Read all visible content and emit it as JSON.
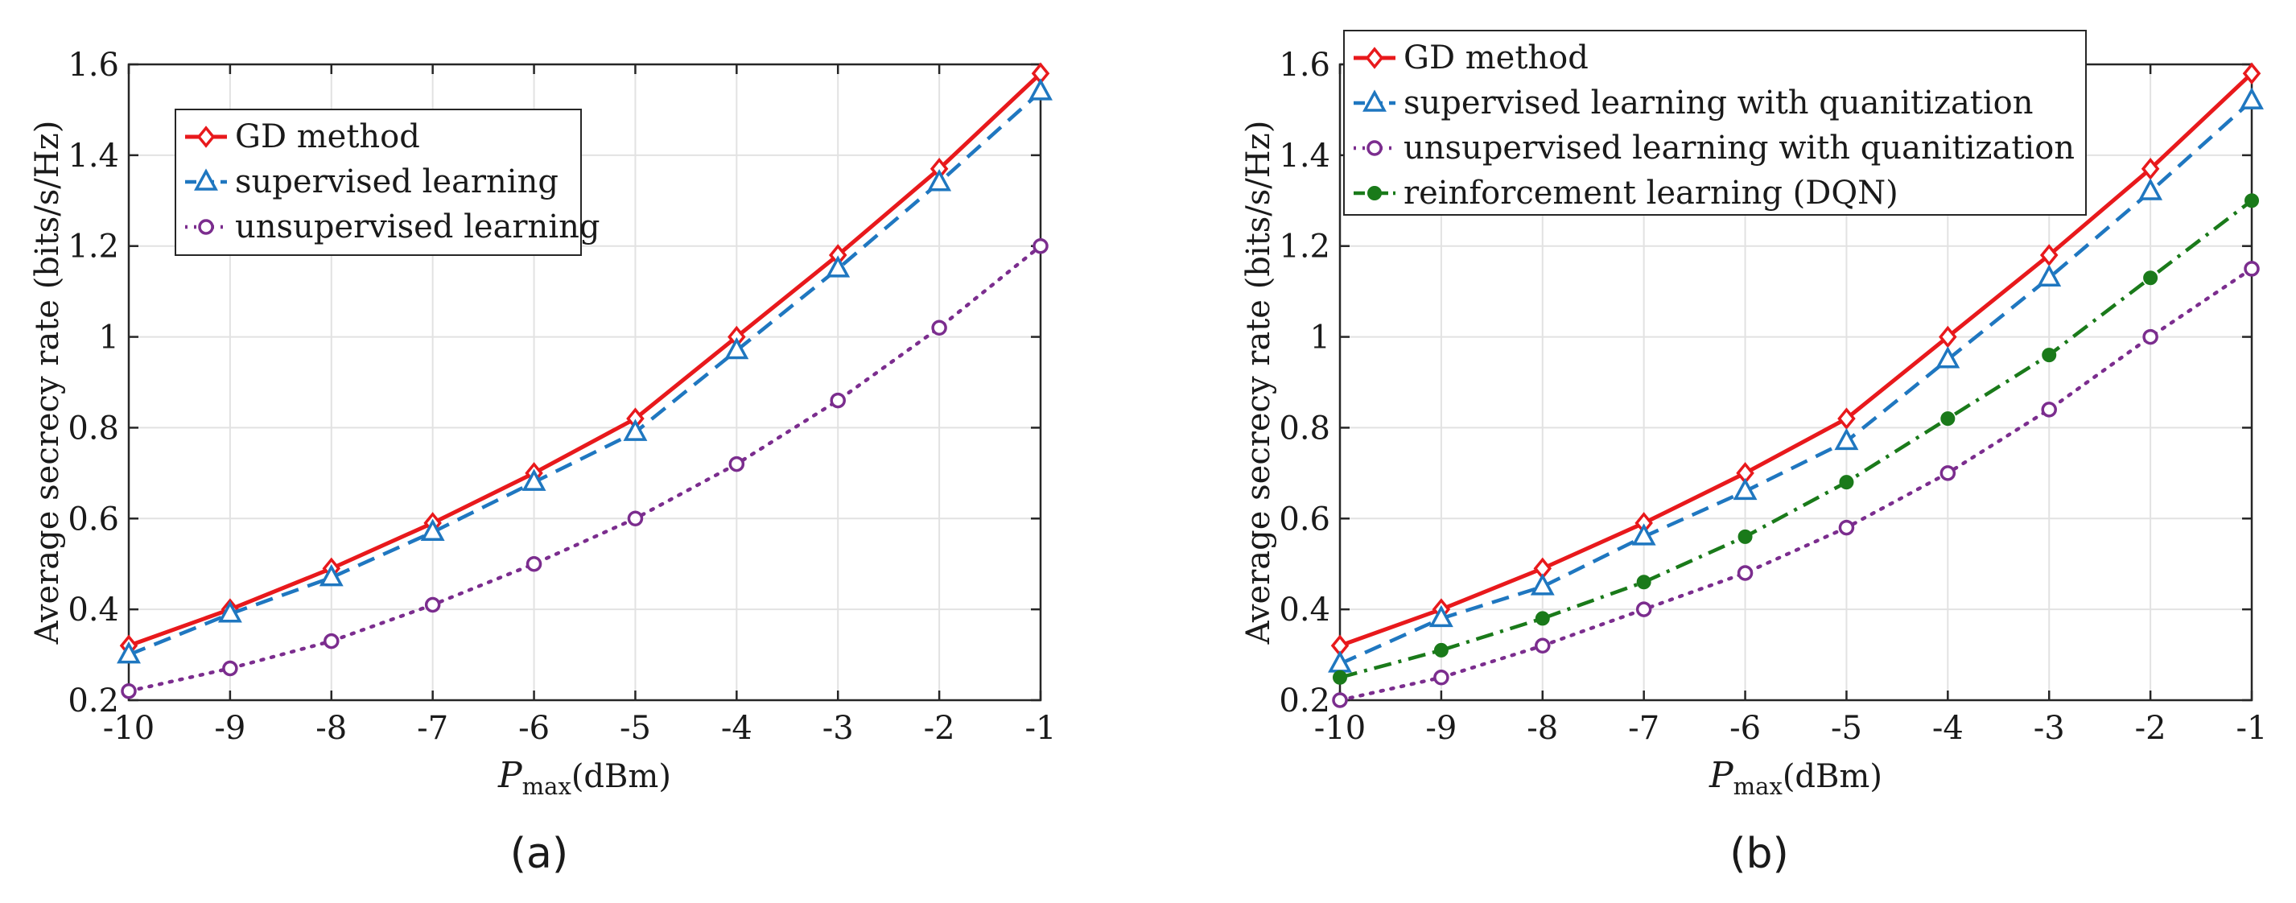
{
  "chart_data": [
    {
      "type": "line",
      "caption": "(a)",
      "xlabel_var": "P",
      "xlabel_sub": "max",
      "xlabel_unit": "(dBm)",
      "ylabel": "Average secrecy rate (bits/s/Hz)",
      "x": [
        -10,
        -9,
        -8,
        -7,
        -6,
        -5,
        -4,
        -3,
        -2,
        -1
      ],
      "xticks": [
        "-10",
        "-9",
        "-8",
        "-7",
        "-6",
        "-5",
        "-4",
        "-3",
        "-2",
        "-1"
      ],
      "ylim": [
        0.2,
        1.6
      ],
      "yticks": [
        0.2,
        0.4,
        0.6,
        0.8,
        1,
        1.2,
        1.4,
        1.6
      ],
      "ytick_labels": [
        "0.2",
        "0.4",
        "0.6",
        "0.8",
        "1",
        "1.2",
        "1.4",
        "1.6"
      ],
      "grid": true,
      "legend_position": "top-left",
      "series": [
        {
          "name": "GD method",
          "color": "#e8191c",
          "dash": "solid",
          "marker": "diamond",
          "values": [
            0.32,
            0.4,
            0.49,
            0.59,
            0.7,
            0.82,
            1.0,
            1.18,
            1.37,
            1.58
          ]
        },
        {
          "name": "supervised learning",
          "color": "#1f77c0",
          "dash": "dashed",
          "marker": "triangle",
          "values": [
            0.3,
            0.39,
            0.47,
            0.57,
            0.68,
            0.79,
            0.97,
            1.15,
            1.34,
            1.54
          ]
        },
        {
          "name": "unsupervised learning",
          "color": "#7b2d8e",
          "dash": "dotted",
          "marker": "circle",
          "values": [
            0.22,
            0.27,
            0.33,
            0.41,
            0.5,
            0.6,
            0.72,
            0.86,
            1.02,
            1.2
          ]
        }
      ]
    },
    {
      "type": "line",
      "caption": "(b)",
      "xlabel_var": "P",
      "xlabel_sub": "max",
      "xlabel_unit": "(dBm)",
      "ylabel": "Average secrecy rate (bits/s/Hz)",
      "x": [
        -10,
        -9,
        -8,
        -7,
        -6,
        -5,
        -4,
        -3,
        -2,
        -1
      ],
      "xticks": [
        "-10",
        "-9",
        "-8",
        "-7",
        "-6",
        "-5",
        "-4",
        "-3",
        "-2",
        "-1"
      ],
      "ylim": [
        0.2,
        1.6
      ],
      "yticks": [
        0.2,
        0.4,
        0.6,
        0.8,
        1,
        1.2,
        1.4,
        1.6
      ],
      "ytick_labels": [
        "0.2",
        "0.4",
        "0.6",
        "0.8",
        "1",
        "1.2",
        "1.4",
        "1.6"
      ],
      "grid": true,
      "legend_position": "top-left",
      "series": [
        {
          "name": "GD method",
          "color": "#e8191c",
          "dash": "solid",
          "marker": "diamond",
          "values": [
            0.32,
            0.4,
            0.49,
            0.59,
            0.7,
            0.82,
            1.0,
            1.18,
            1.37,
            1.58
          ]
        },
        {
          "name": "supervised learning with quanitization",
          "color": "#1f77c0",
          "dash": "dashed",
          "marker": "triangle",
          "values": [
            0.28,
            0.38,
            0.45,
            0.56,
            0.66,
            0.77,
            0.95,
            1.13,
            1.32,
            1.52
          ]
        },
        {
          "name": "unsupervised learning with quanitization",
          "color": "#7b2d8e",
          "dash": "dotted",
          "marker": "circle",
          "values": [
            0.2,
            0.25,
            0.32,
            0.4,
            0.48,
            0.58,
            0.7,
            0.84,
            1.0,
            1.15
          ]
        },
        {
          "name": "reinforcement learning (DQN)",
          "color": "#1a7a1a",
          "dash": "dashdot",
          "marker": "dot",
          "values": [
            0.25,
            0.31,
            0.38,
            0.46,
            0.56,
            0.68,
            0.82,
            0.96,
            1.13,
            1.3
          ]
        }
      ]
    }
  ]
}
